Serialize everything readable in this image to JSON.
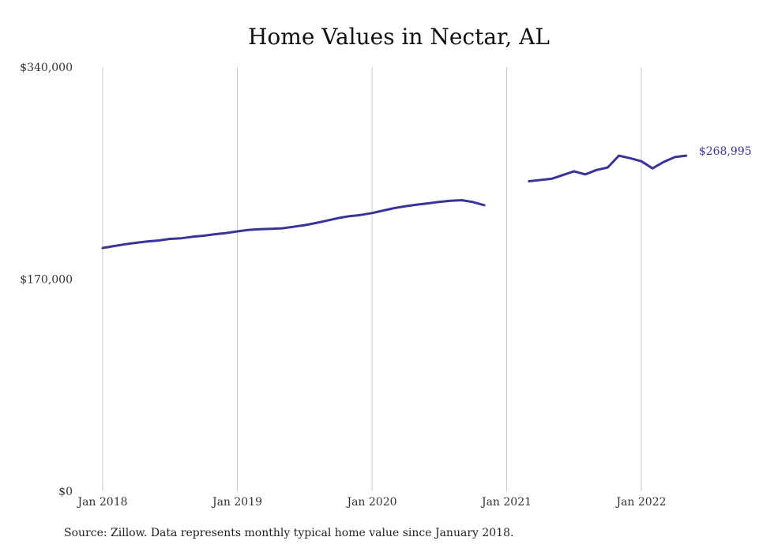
{
  "title": "Home Values in Nectar, AL",
  "source": "Source: Zillow. Data represents monthly typical home value since January 2018.",
  "chart_data": {
    "type": "line",
    "title": "Home Values in Nectar, AL",
    "xlabel": "",
    "ylabel": "",
    "xlim": [
      "2018-01",
      "2022-05"
    ],
    "ylim": [
      0,
      340000
    ],
    "x_tick_labels": [
      "Jan 2018",
      "Jan 2019",
      "Jan 2020",
      "Jan 2021",
      "Jan 2022"
    ],
    "y_tick_labels": [
      "$0",
      "$170,000",
      "$340,000"
    ],
    "y_ticks": [
      0,
      170000,
      340000
    ],
    "grid": "vertical",
    "color": "#3a3399",
    "end_label": "$268,995",
    "series": [
      {
        "segments": [
          {
            "x": [
              "2018-01",
              "2018-02",
              "2018-03",
              "2018-04",
              "2018-05",
              "2018-06",
              "2018-07",
              "2018-08",
              "2018-09",
              "2018-10",
              "2018-11",
              "2018-12",
              "2019-01",
              "2019-02",
              "2019-03",
              "2019-04",
              "2019-05",
              "2019-06",
              "2019-07",
              "2019-08",
              "2019-09",
              "2019-10",
              "2019-11",
              "2019-12",
              "2020-01",
              "2020-02",
              "2020-03",
              "2020-04",
              "2020-05",
              "2020-06",
              "2020-07",
              "2020-08",
              "2020-09",
              "2020-10",
              "2020-11"
            ],
            "y": [
              195000,
              196500,
              198000,
              199200,
              200200,
              201000,
              202300,
              202800,
              204000,
              204800,
              206000,
              207000,
              208300,
              209500,
              210000,
              210300,
              210800,
              212000,
              213300,
              215000,
              217000,
              219000,
              220500,
              221500,
              223000,
              225000,
              227000,
              228500,
              229800,
              230800,
              232000,
              232800,
              233300,
              231800,
              229300
            ]
          },
          {
            "x": [
              "2021-03",
              "2021-05",
              "2021-07",
              "2021-08",
              "2021-09",
              "2021-10",
              "2021-11",
              "2021-12",
              "2022-01",
              "2022-02",
              "2022-03",
              "2022-04",
              "2022-05"
            ],
            "y": [
              248500,
              250500,
              256500,
              254000,
              257500,
              259500,
              269000,
              267000,
              264500,
              258800,
              264000,
              267900,
              268995
            ]
          }
        ]
      }
    ]
  }
}
